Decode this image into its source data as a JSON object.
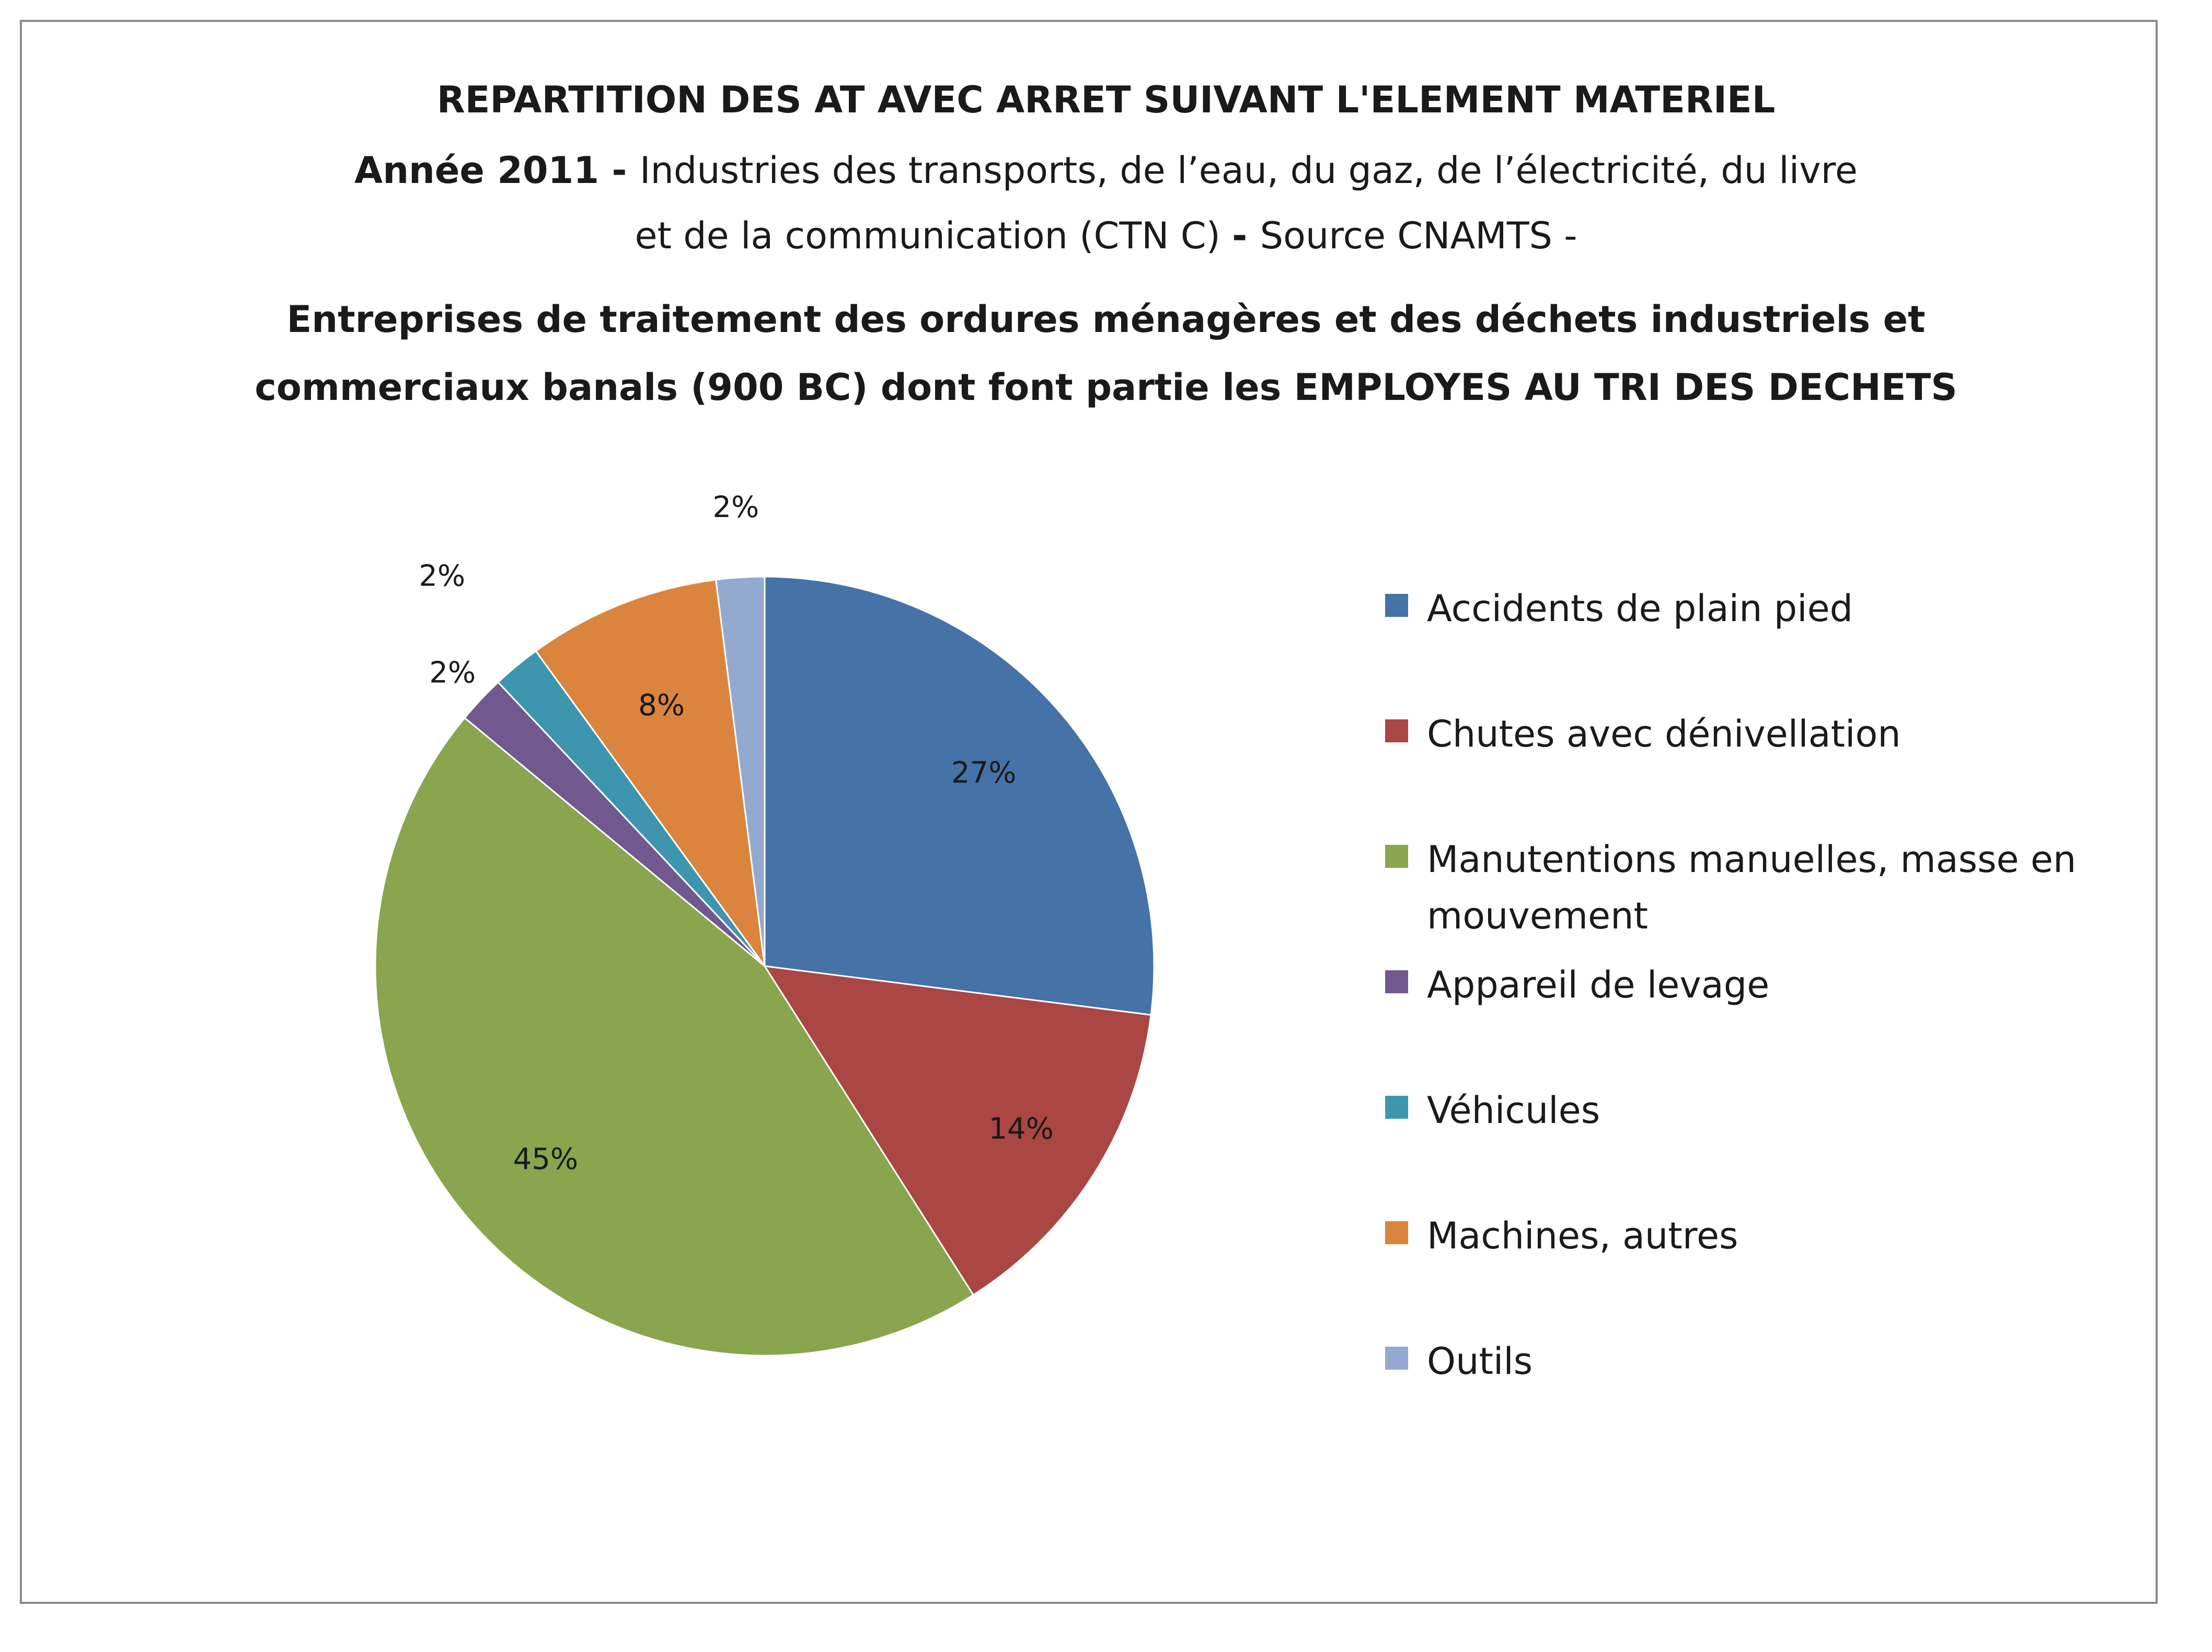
{
  "title": {
    "line1": "REPARTITION DES AT AVEC ARRET SUIVANT L'ELEMENT MATERIEL",
    "line2_bold": "Année 2011  - ",
    "line2": "Industries des transports, de l’eau, du gaz, de l’électricité, du livre",
    "line3_a": "et de la communication  (CTN C) ",
    "line3_bold": "- ",
    "line3_b": " Source  CNAMTS -",
    "line4": "Entreprises de traitement des ordures ménagères et des déchets industriels et",
    "line5": "commerciaux banals (900  BC) dont font partie les EMPLOYES AU TRI DES DECHETS"
  },
  "legend_items": [
    {
      "label": "Accidents de plain pied",
      "color": "#4572a7"
    },
    {
      "label": "Chutes avec dénivellation",
      "color": "#aa4643"
    },
    {
      "label": "Manutentions manuelles, masse en mouvement",
      "color": "#89a54e"
    },
    {
      "label": "Appareil de levage",
      "color": "#71588f"
    },
    {
      "label": "Véhicules",
      "color": "#3d96ae"
    },
    {
      "label": "Machines, autres",
      "color": "#db843d"
    },
    {
      "label": "Outils",
      "color": "#93a9cf"
    }
  ],
  "chart_data": {
    "type": "pie",
    "legend_position": "right",
    "start_angle": "12 o'clock, clockwise",
    "slices": [
      {
        "name": "Accidents de plain pied",
        "value": 27,
        "label": "27%",
        "color": "#4572a7"
      },
      {
        "name": "Chutes avec dénivellation",
        "value": 14,
        "label": "14%",
        "color": "#aa4643"
      },
      {
        "name": "Manutentions manuelles, masse en mouvement",
        "value": 45,
        "label": "45%",
        "color": "#89a54e"
      },
      {
        "name": "Appareil de levage",
        "value": 2,
        "label": "2%",
        "color": "#71588f"
      },
      {
        "name": "Véhicules",
        "value": 2,
        "label": "2%",
        "color": "#3d96ae"
      },
      {
        "name": "Machines, autres",
        "value": 8,
        "label": "8%",
        "color": "#db843d"
      },
      {
        "name": "Outils",
        "value": 2,
        "label": "2%",
        "color": "#93a9cf"
      }
    ]
  }
}
